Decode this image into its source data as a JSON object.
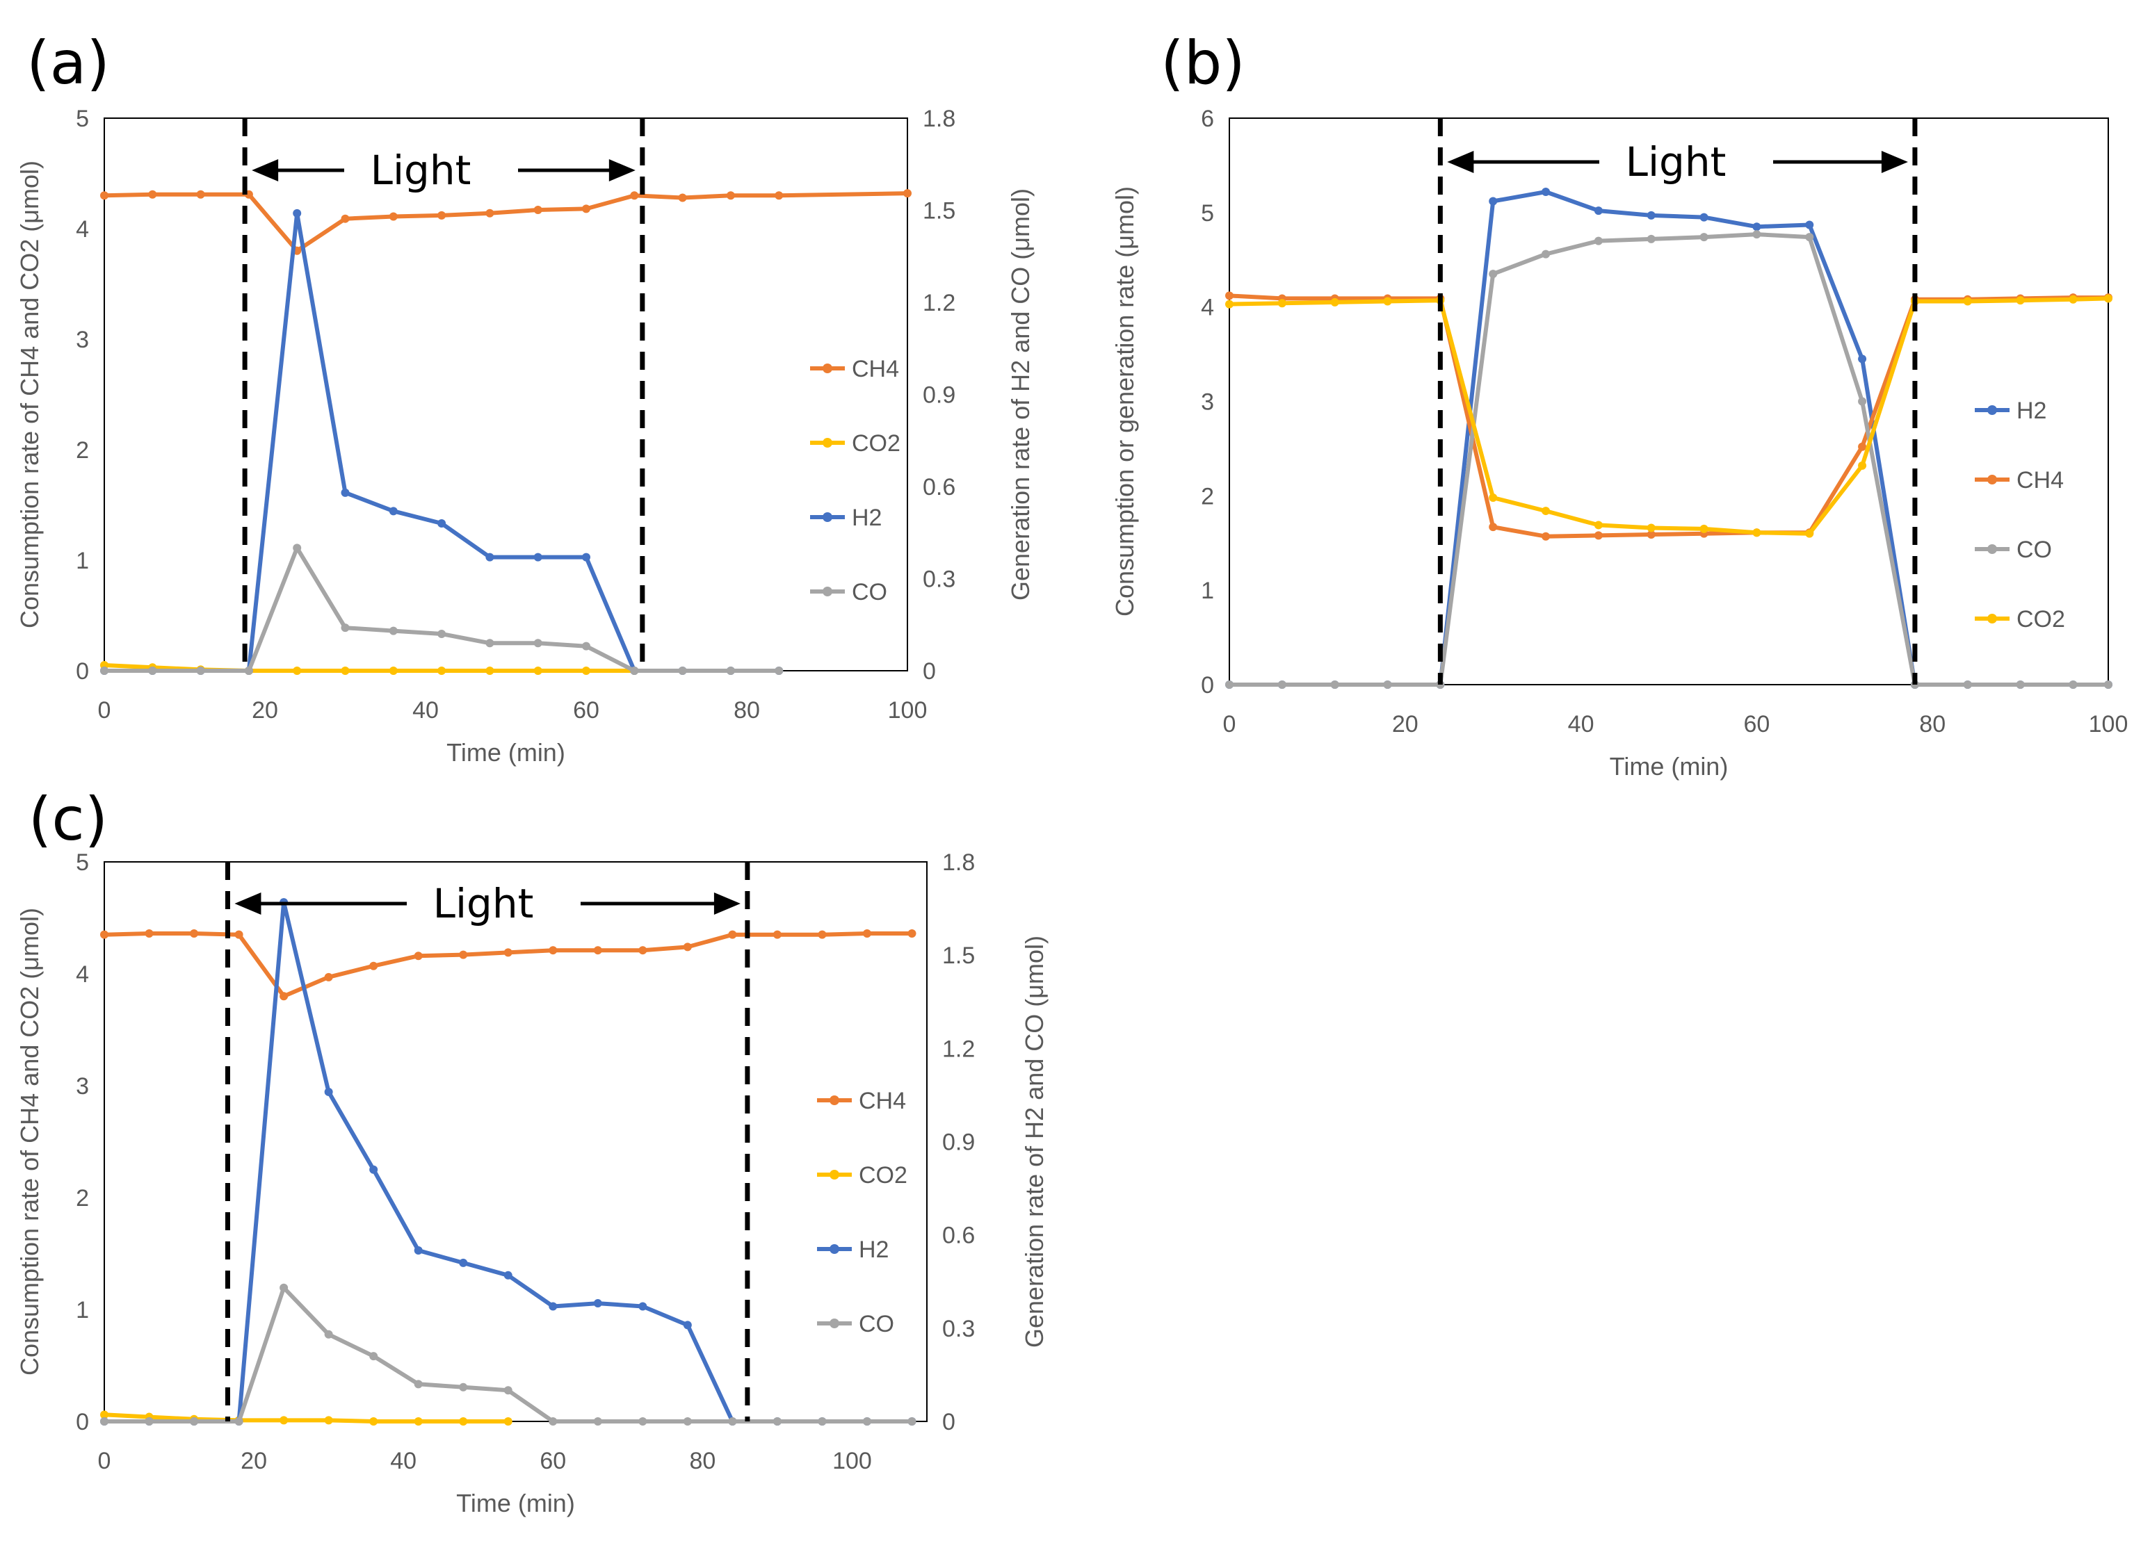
{
  "colors": {
    "CH4": "#ED7D31",
    "CO2": "#FFC000",
    "H2": "#4472C4",
    "CO": "#A5A5A5"
  },
  "chart_data": [
    {
      "panel": "(a)",
      "type": "line",
      "annotation": "Light",
      "light_start": 17.5,
      "light_end": 67,
      "xlabel": "Time (min)",
      "ylabel": "Consumption rate of CH4 and CO2 (μmol)",
      "ylabel_right": "Generation rate of H2 and CO (μmol)",
      "xlim": [
        0,
        100
      ],
      "ylim": [
        0,
        5
      ],
      "ylim_right": [
        0,
        1.8
      ],
      "xticks": [
        "0",
        "20",
        "40",
        "60",
        "80",
        "100"
      ],
      "yticks": [
        "0",
        "1",
        "2",
        "3",
        "4",
        "5"
      ],
      "yticks_right": [
        "0",
        "0.3",
        "0.6",
        "0.9",
        "1.2",
        "1.5",
        "1.8"
      ],
      "legend_position": "right",
      "series": [
        {
          "name": "CH4",
          "axis": "left",
          "x": [
            0,
            6,
            12,
            18,
            24,
            30,
            36,
            42,
            48,
            54,
            60,
            66,
            72,
            78,
            84,
            100
          ],
          "y": [
            4.3,
            4.31,
            4.31,
            4.31,
            3.8,
            4.09,
            4.11,
            4.12,
            4.14,
            4.17,
            4.18,
            4.3,
            4.28,
            4.3,
            4.3,
            4.32
          ]
        },
        {
          "name": "CO2",
          "axis": "left",
          "x": [
            0,
            6,
            12,
            18,
            24,
            30,
            36,
            42,
            48,
            54,
            60,
            66
          ],
          "y": [
            0.05,
            0.03,
            0.01,
            0,
            0,
            0,
            0,
            0,
            0,
            0,
            0,
            0
          ]
        },
        {
          "name": "H2",
          "axis": "right",
          "x": [
            0,
            6,
            12,
            18,
            24,
            30,
            36,
            42,
            48,
            54,
            60,
            66,
            72,
            78,
            84
          ],
          "y": [
            0,
            0,
            0,
            0,
            1.49,
            0.58,
            0.52,
            0.48,
            0.37,
            0.37,
            0.37,
            0,
            0,
            0,
            0
          ]
        },
        {
          "name": "CO",
          "axis": "right",
          "x": [
            0,
            6,
            12,
            18,
            24,
            30,
            36,
            42,
            48,
            54,
            60,
            66,
            72,
            78,
            84
          ],
          "y": [
            0,
            0,
            0,
            0,
            0.4,
            0.14,
            0.13,
            0.12,
            0.09,
            0.09,
            0.08,
            0,
            0,
            0,
            0
          ]
        }
      ]
    },
    {
      "panel": "(b)",
      "type": "line",
      "annotation": "Light",
      "light_start": 24,
      "light_end": 78,
      "xlabel": "Time (min)",
      "ylabel": "Consumption or generation rate (μmol)",
      "xlim": [
        0,
        100
      ],
      "ylim": [
        0,
        6
      ],
      "xticks": [
        "0",
        "20",
        "40",
        "60",
        "80",
        "100"
      ],
      "yticks": [
        "0",
        "1",
        "2",
        "3",
        "4",
        "5",
        "6"
      ],
      "legend_position": "right",
      "series": [
        {
          "name": "H2",
          "axis": "left",
          "x": [
            0,
            6,
            12,
            18,
            24,
            30,
            36,
            42,
            48,
            54,
            60,
            66,
            72,
            78,
            84,
            90,
            96,
            100
          ],
          "y": [
            0,
            0,
            0,
            0,
            0,
            5.12,
            5.22,
            5.02,
            4.97,
            4.95,
            4.85,
            4.87,
            3.45,
            0,
            0,
            0,
            0,
            0
          ]
        },
        {
          "name": "CH4",
          "axis": "left",
          "x": [
            0,
            6,
            12,
            18,
            24,
            30,
            36,
            42,
            48,
            54,
            60,
            66,
            72,
            78,
            84,
            90,
            96,
            100
          ],
          "y": [
            4.12,
            4.09,
            4.09,
            4.09,
            4.09,
            1.67,
            1.57,
            1.58,
            1.59,
            1.6,
            1.61,
            1.61,
            2.52,
            4.08,
            4.08,
            4.09,
            4.1,
            4.1
          ]
        },
        {
          "name": "CO",
          "axis": "left",
          "x": [
            0,
            6,
            12,
            18,
            24,
            30,
            36,
            42,
            48,
            54,
            60,
            66,
            72,
            78,
            84,
            90,
            96,
            100
          ],
          "y": [
            0,
            0,
            0,
            0,
            0,
            4.35,
            4.56,
            4.7,
            4.72,
            4.74,
            4.77,
            4.74,
            3.0,
            0,
            0,
            0,
            0,
            0
          ]
        },
        {
          "name": "CO2",
          "axis": "left",
          "x": [
            0,
            6,
            12,
            18,
            24,
            30,
            36,
            42,
            48,
            54,
            60,
            66,
            72,
            78,
            84,
            90,
            96,
            100
          ],
          "y": [
            4.03,
            4.04,
            4.05,
            4.06,
            4.07,
            1.98,
            1.84,
            1.69,
            1.66,
            1.65,
            1.61,
            1.6,
            2.32,
            4.06,
            4.06,
            4.07,
            4.08,
            4.09
          ]
        }
      ]
    },
    {
      "panel": "(c)",
      "type": "line",
      "annotation": "Light",
      "light_start": 16.5,
      "light_end": 86,
      "xlabel": "Time (min)",
      "ylabel": "Consumption rate of CH4 and CO2 (μmol)",
      "ylabel_right": "Generation rate of H2 and CO (μmol)",
      "xlim": [
        0,
        110
      ],
      "ylim": [
        0,
        5
      ],
      "ylim_right": [
        0,
        1.8
      ],
      "xticks": [
        "0",
        "20",
        "40",
        "60",
        "80",
        "100"
      ],
      "yticks": [
        "0",
        "1",
        "2",
        "3",
        "4",
        "5"
      ],
      "yticks_right": [
        "0",
        "0.3",
        "0.6",
        "0.9",
        "1.2",
        "1.5",
        "1.8"
      ],
      "legend_position": "right",
      "series": [
        {
          "name": "CH4",
          "axis": "left",
          "x": [
            0,
            6,
            12,
            18,
            24,
            30,
            36,
            42,
            48,
            54,
            60,
            66,
            72,
            78,
            84,
            90,
            96,
            102,
            108
          ],
          "y": [
            4.35,
            4.36,
            4.36,
            4.35,
            3.8,
            3.97,
            4.07,
            4.16,
            4.17,
            4.19,
            4.21,
            4.21,
            4.21,
            4.24,
            4.35,
            4.35,
            4.35,
            4.36,
            4.36
          ]
        },
        {
          "name": "CO2",
          "axis": "left",
          "x": [
            0,
            6,
            12,
            18,
            24,
            30,
            36,
            42,
            48,
            54
          ],
          "y": [
            0.06,
            0.04,
            0.02,
            0.01,
            0.01,
            0.01,
            0,
            0,
            0,
            0
          ]
        },
        {
          "name": "H2",
          "axis": "right",
          "x": [
            0,
            6,
            12,
            18,
            24,
            30,
            36,
            42,
            48,
            54,
            60,
            66,
            72,
            78,
            84,
            90,
            96,
            102,
            108
          ],
          "y": [
            0,
            0,
            0,
            0,
            1.67,
            1.06,
            0.81,
            0.55,
            0.51,
            0.47,
            0.37,
            0.38,
            0.37,
            0.31,
            0,
            0,
            0,
            0,
            0
          ]
        },
        {
          "name": "CO",
          "axis": "right",
          "x": [
            0,
            6,
            12,
            18,
            24,
            30,
            36,
            42,
            48,
            54,
            60,
            66,
            72,
            78,
            84,
            90,
            96,
            102,
            108
          ],
          "y": [
            0,
            0,
            0,
            0,
            0.43,
            0.28,
            0.21,
            0.12,
            0.11,
            0.1,
            0,
            0,
            0,
            0,
            0,
            0,
            0,
            0,
            0
          ]
        }
      ]
    }
  ]
}
